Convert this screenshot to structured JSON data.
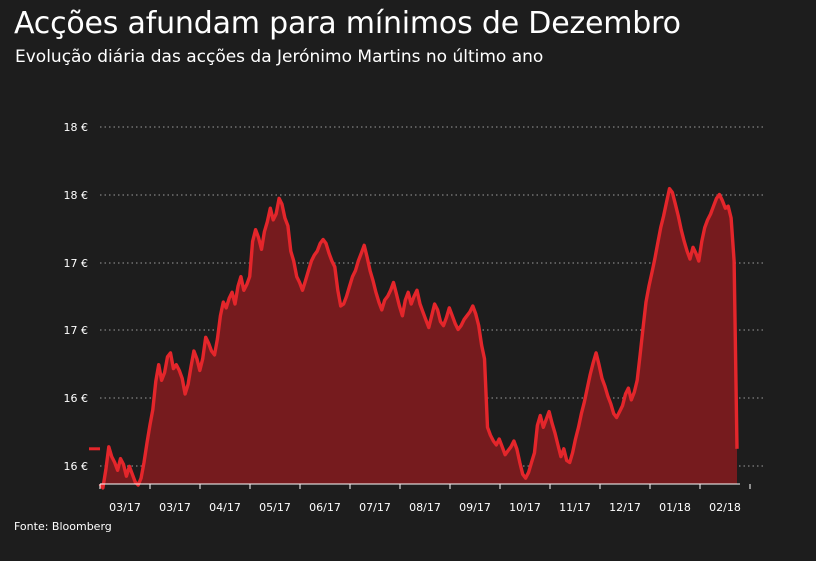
{
  "title": "Acções afundam para mínimos de Dezembro",
  "subtitle": "Evolução diária das acções da Jerónimo Martins no último ano",
  "source": "Fonte: Bloomberg",
  "colors": {
    "background": "#1d1d1d",
    "line": "#e4262b",
    "area": "#761b1e",
    "text": "#ffffff"
  },
  "chart_data": {
    "type": "area",
    "title": "Acções afundam para mínimos de Dezembro",
    "subtitle": "Evolução diária das acções da Jerónimo Martins no último ano",
    "y_tick_labels": [
      "16 €",
      "16 €",
      "17 €",
      "17 €",
      "18 €",
      "18 €"
    ],
    "x_tick_labels": [
      "03/17",
      "03/17",
      "04/17",
      "05/17",
      "06/17",
      "07/17",
      "08/17",
      "09/17",
      "10/17",
      "11/17",
      "12/17",
      "01/18",
      "02/18"
    ],
    "ylim": [
      15.0,
      18.65
    ],
    "grid": "horizontal dotted",
    "series": [
      {
        "values": [
          15.0,
          14.96,
          15.15,
          15.38,
          15.28,
          15.22,
          15.14,
          15.26,
          15.2,
          15.08,
          15.18,
          15.1,
          15.02,
          14.99,
          15.06,
          15.22,
          15.42,
          15.6,
          15.76,
          16.05,
          16.22,
          16.06,
          16.14,
          16.3,
          16.34,
          16.18,
          16.22,
          16.16,
          16.08,
          15.92,
          16.02,
          16.2,
          16.36,
          16.28,
          16.16,
          16.28,
          16.5,
          16.44,
          16.36,
          16.32,
          16.48,
          16.72,
          16.86,
          16.8,
          16.9,
          16.96,
          16.84,
          17.02,
          17.12,
          16.98,
          17.04,
          17.12,
          17.48,
          17.6,
          17.52,
          17.4,
          17.58,
          17.68,
          17.82,
          17.7,
          17.76,
          17.92,
          17.86,
          17.72,
          17.64,
          17.38,
          17.28,
          17.12,
          17.06,
          16.98,
          17.08,
          17.18,
          17.28,
          17.34,
          17.38,
          17.46,
          17.5,
          17.46,
          17.36,
          17.28,
          17.22,
          16.98,
          16.82,
          16.84,
          16.92,
          17.02,
          17.12,
          17.18,
          17.28,
          17.36,
          17.44,
          17.32,
          17.18,
          17.08,
          16.96,
          16.86,
          16.78,
          16.88,
          16.92,
          16.98,
          17.06,
          16.94,
          16.82,
          16.72,
          16.88,
          16.96,
          16.84,
          16.92,
          16.98,
          16.84,
          16.76,
          16.68,
          16.6,
          16.72,
          16.84,
          16.78,
          16.66,
          16.62,
          16.7,
          16.8,
          16.72,
          16.64,
          16.58,
          16.62,
          16.68,
          16.72,
          16.76,
          16.82,
          16.74,
          16.62,
          16.42,
          16.28,
          15.58,
          15.5,
          15.44,
          15.4,
          15.46,
          15.38,
          15.3,
          15.34,
          15.38,
          15.44,
          15.36,
          15.22,
          15.1,
          15.06,
          15.12,
          15.22,
          15.32,
          15.6,
          15.7,
          15.58,
          15.66,
          15.74,
          15.62,
          15.52,
          15.4,
          15.28,
          15.36,
          15.24,
          15.22,
          15.32,
          15.46,
          15.58,
          15.72,
          15.84,
          15.98,
          16.12,
          16.24,
          16.34,
          16.22,
          16.08,
          16.0,
          15.9,
          15.82,
          15.72,
          15.68,
          15.74,
          15.8,
          15.92,
          15.98,
          15.86,
          15.94,
          16.06,
          16.32,
          16.6,
          16.86,
          17.02,
          17.16,
          17.3,
          17.46,
          17.62,
          17.74,
          17.88,
          18.02,
          17.98,
          17.86,
          17.74,
          17.6,
          17.48,
          17.38,
          17.3,
          17.42,
          17.36,
          17.28,
          17.48,
          17.62,
          17.7,
          17.76,
          17.84,
          17.92,
          17.96,
          17.9,
          17.82,
          17.84,
          17.72,
          17.28,
          15.36
        ]
      }
    ]
  }
}
